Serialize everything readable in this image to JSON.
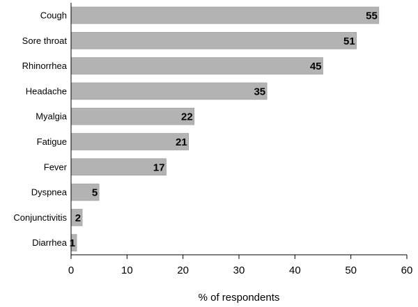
{
  "chart_data": {
    "type": "bar",
    "orientation": "horizontal",
    "categories": [
      "Cough",
      "Sore throat",
      "Rhinorrhea",
      "Headache",
      "Myalgia",
      "Fatigue",
      "Fever",
      "Dyspnea",
      "Conjunctivitis",
      "Diarrhea"
    ],
    "values": [
      55,
      51,
      45,
      35,
      22,
      21,
      17,
      5,
      2,
      1
    ],
    "data_labels": [
      "55",
      "51",
      "45",
      "35",
      "22",
      "21",
      "17",
      "5",
      "2",
      "1"
    ],
    "title": "",
    "xlabel": "% of respondents",
    "ylabel": "",
    "xlim": [
      0,
      60
    ],
    "x_ticks": [
      0,
      10,
      20,
      30,
      40,
      50,
      60
    ],
    "x_tick_labels": [
      "0",
      "10",
      "20",
      "30",
      "40",
      "50",
      "60"
    ],
    "grid": false,
    "legend": "none",
    "bar_color": "#b3b3b3",
    "axis_color": "#000000"
  }
}
